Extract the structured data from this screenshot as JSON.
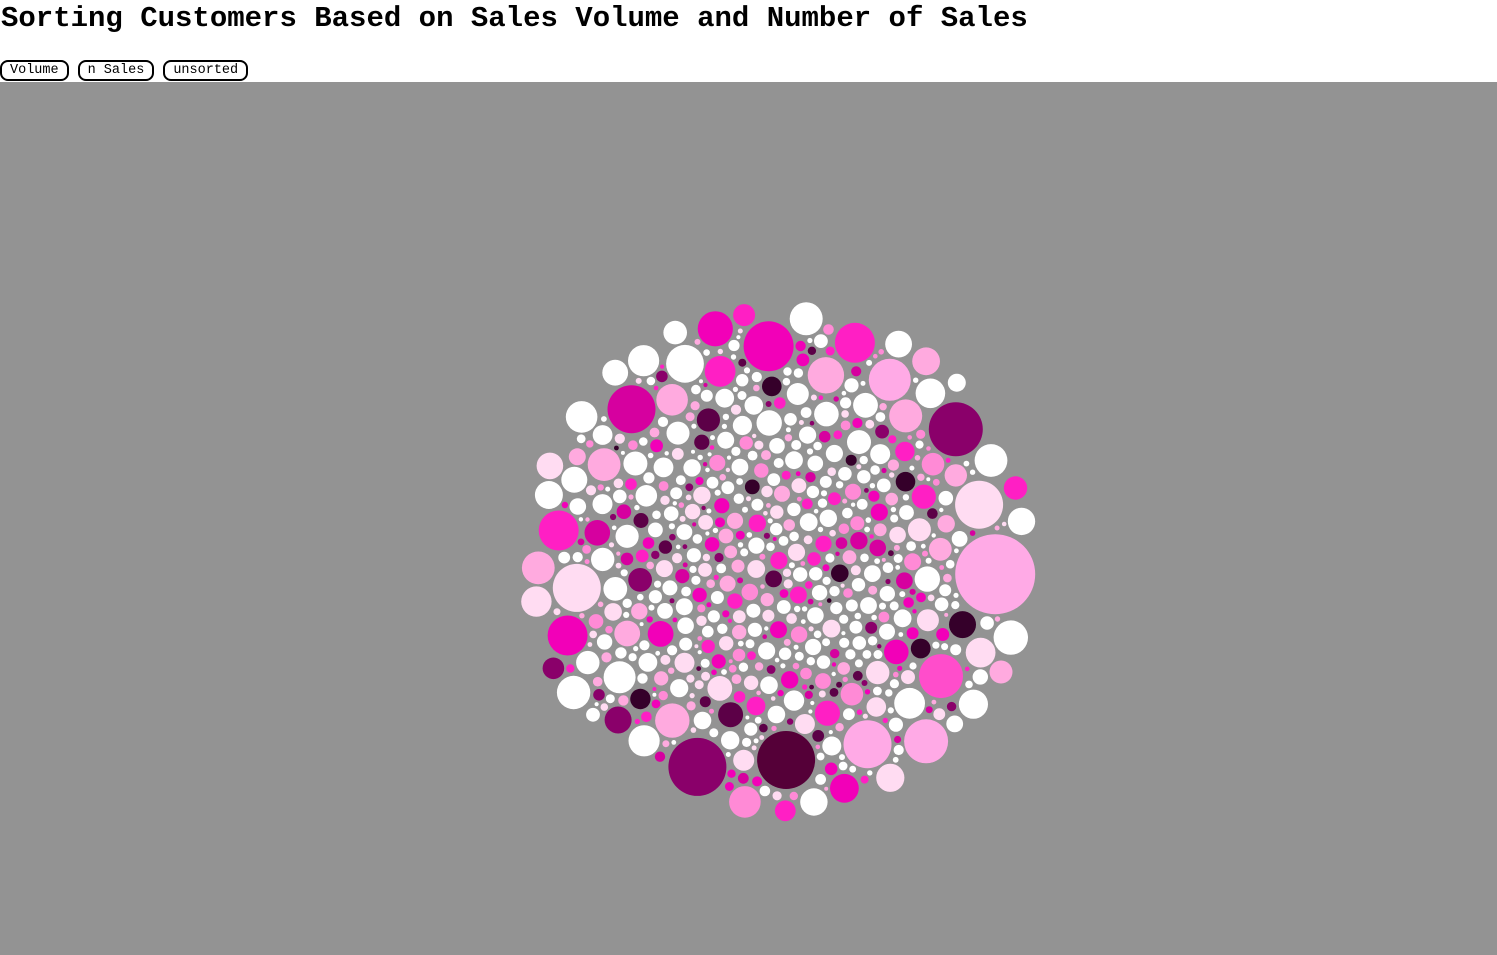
{
  "title": "Sorting Customers Based on Sales Volume and Number of Sales",
  "controls": {
    "volume_label": "Volume",
    "nsales_label": "n Sales",
    "unsorted_label": "unsorted"
  },
  "colors": {
    "background": "#939393",
    "palette": [
      "#ffffff",
      "#ffdcf2",
      "#ffaadf",
      "#ff8ad6",
      "#ff4dcb",
      "#ff1fc4",
      "#f200b8",
      "#d6009f",
      "#b00086",
      "#8a006a",
      "#5c0047",
      "#35002a",
      "#000000"
    ]
  },
  "chart_data": {
    "type": "scatter",
    "layout": "packed bubble cluster",
    "title": "Sorting Customers Based on Sales Volume and Number of Sales",
    "sort_modes": [
      "Volume",
      "n Sales",
      "unsorted"
    ],
    "encoding": {
      "radius": "sales volume",
      "color": "number of sales"
    },
    "notable_customers": [
      {
        "volume": 40,
        "color": "#ffaae6"
      },
      {
        "volume": 29,
        "color": "#550038"
      },
      {
        "volume": 29,
        "color": "#8a006a"
      },
      {
        "volume": 27,
        "color": "#8a006a"
      },
      {
        "volume": 25,
        "color": "#f200b8"
      },
      {
        "volume": 24,
        "color": "#ffdcf2"
      },
      {
        "volume": 24,
        "color": "#d6009f"
      },
      {
        "volume": 24,
        "color": "#ffaae6"
      },
      {
        "volume": 24,
        "color": "#ffdcf2"
      },
      {
        "volume": 22,
        "color": "#ff4dcb"
      },
      {
        "volume": 22,
        "color": "#ffaae6"
      },
      {
        "volume": 21,
        "color": "#ffaae6"
      },
      {
        "volume": 20,
        "color": "#ff1fc4"
      },
      {
        "volume": 20,
        "color": "#ff1fc4"
      },
      {
        "volume": 20,
        "color": "#f200b8"
      }
    ]
  }
}
